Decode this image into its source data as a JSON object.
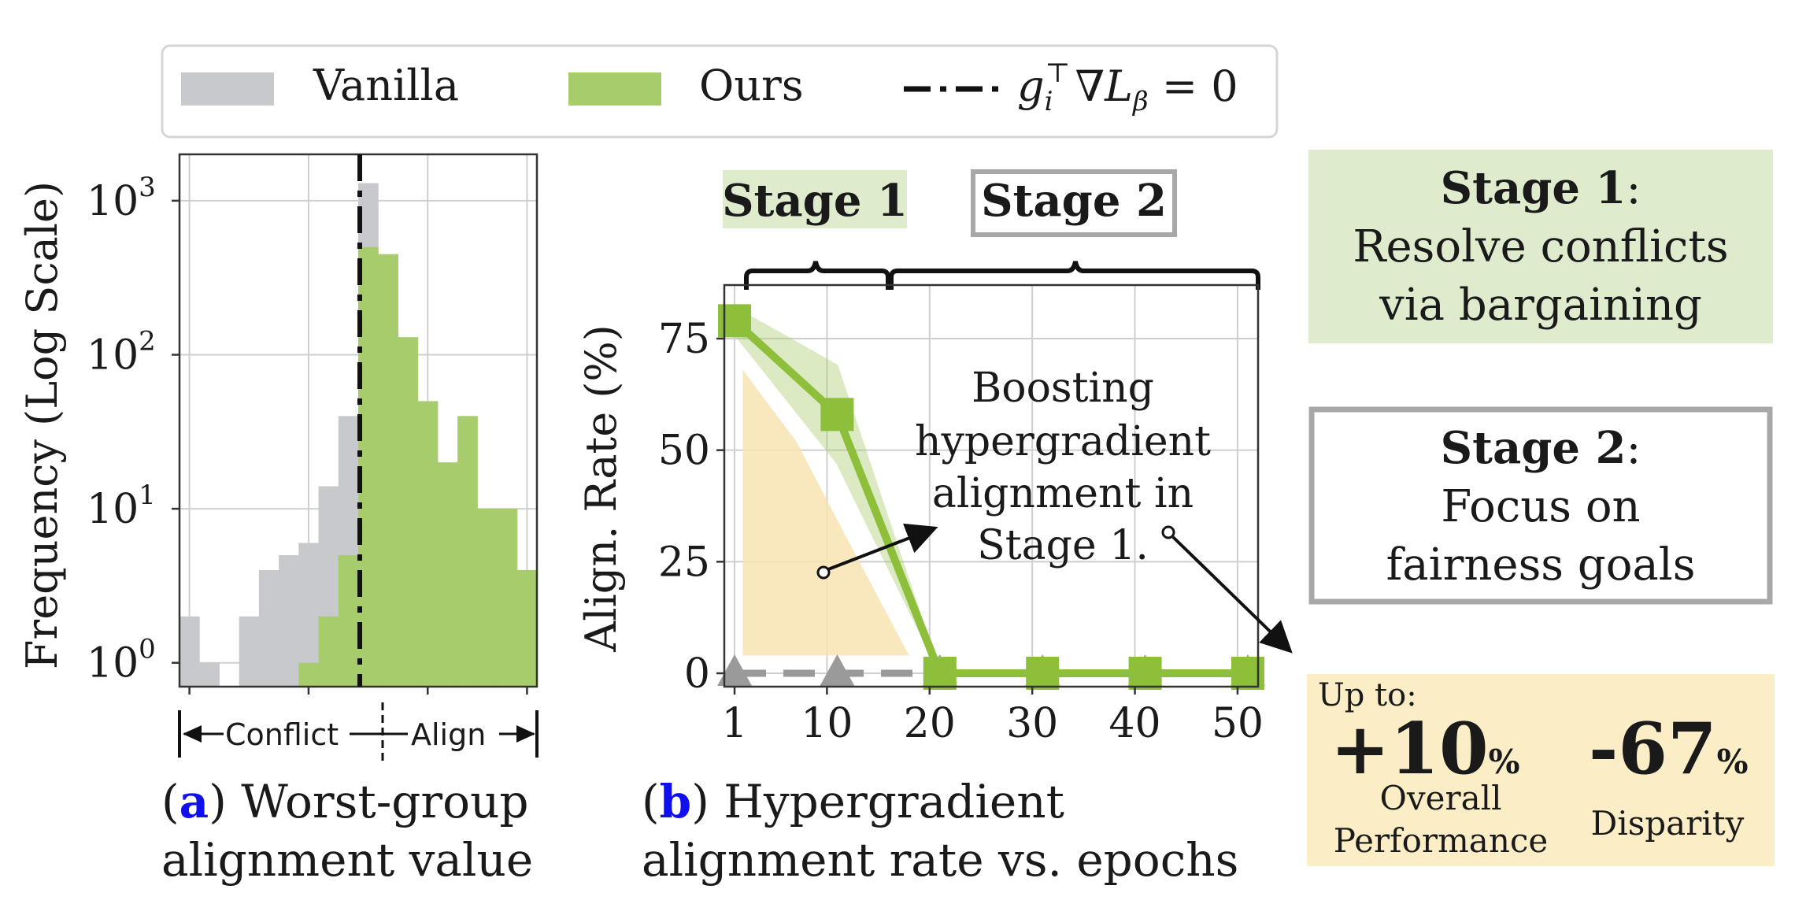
{
  "legend": {
    "vanilla": "Vanilla",
    "ours": "Ours",
    "line_label": "g_i^T ∇L_β = 0"
  },
  "colors": {
    "vanilla": "#c8c9cd",
    "ours": "#a6cc6b",
    "ours_line": "#8dbf3a",
    "vanilla_line": "#9a9a9a",
    "stage1_bg": "#deebcc",
    "highlight_bg": "#fbeec7",
    "region_fill": "#f8e3b1",
    "accent_blue": "#1010ee"
  },
  "panel_a": {
    "caption_letter": "a",
    "caption_line1": ") Worst-group",
    "caption_line2": "alignment value",
    "conflict_label": "Conflict",
    "align_label": "Align"
  },
  "panel_b": {
    "caption_letter": "b",
    "caption_line1": ") Hypergradient",
    "caption_line2": "alignment rate vs. epochs",
    "stage1_tag": "Stage 1",
    "stage2_tag": "Stage 2",
    "annotation_lines": [
      "Boosting",
      "hypergradient",
      "alignment in",
      "Stage 1."
    ]
  },
  "right": {
    "stage1_title": "Stage 1",
    "stage1_lines": [
      "Resolve conflicts",
      "via bargaining"
    ],
    "stage2_title": "Stage 2",
    "stage2_lines": [
      "Focus on",
      "fairness goals"
    ],
    "upto": "Up to:",
    "stat1_value": "+10",
    "stat1_unit": "%",
    "stat1_label_lines": [
      "Overall",
      "Performance"
    ],
    "stat2_value": "-67",
    "stat2_unit": "%",
    "stat2_label": "Disparity"
  },
  "chart_data": [
    {
      "type": "bar",
      "chart": "histogram",
      "ylabel": "Frequency  (Log Scale)",
      "yscale": "log",
      "ylim": [
        0.7,
        2000
      ],
      "yticks": [
        1,
        10,
        100,
        1000
      ],
      "ytick_labels": [
        "10",
        "10",
        "10",
        "10"
      ],
      "ytick_exponents": [
        "0",
        "1",
        "2",
        "3"
      ],
      "vline_at_bin": 9,
      "grid": true,
      "series": [
        {
          "name": "Vanilla",
          "bins": [
            0,
            1,
            3,
            4,
            5,
            6,
            7,
            8,
            9
          ],
          "values": [
            2,
            1,
            2,
            4,
            5,
            6,
            14,
            40,
            1300
          ]
        },
        {
          "name": "Ours",
          "bins": [
            6,
            7,
            8,
            9,
            10,
            11,
            12,
            13,
            14,
            15,
            16,
            17
          ],
          "values": [
            1,
            2,
            5,
            500,
            450,
            130,
            50,
            20,
            40,
            10,
            10,
            4
          ]
        }
      ]
    },
    {
      "type": "line",
      "xlabel": "",
      "ylabel": "Align. Rate (%)",
      "xlim": [
        0,
        52
      ],
      "ylim": [
        -3,
        87
      ],
      "xticks": [
        1,
        10,
        20,
        30,
        40,
        50
      ],
      "yticks": [
        0,
        25,
        50,
        75
      ],
      "grid": true,
      "series": [
        {
          "name": "Ours",
          "x": [
            1,
            11,
            21,
            31,
            41,
            51
          ],
          "y": [
            79,
            58,
            0,
            0,
            0,
            0
          ],
          "band_upper": [
            82,
            69,
            0,
            0,
            0,
            0
          ],
          "band_lower": [
            76,
            47,
            0,
            0,
            0,
            0
          ]
        },
        {
          "name": "Vanilla",
          "x": [
            1,
            11,
            21,
            31,
            41,
            51
          ],
          "y": [
            0,
            0,
            0,
            0,
            0,
            0
          ]
        }
      ]
    }
  ]
}
